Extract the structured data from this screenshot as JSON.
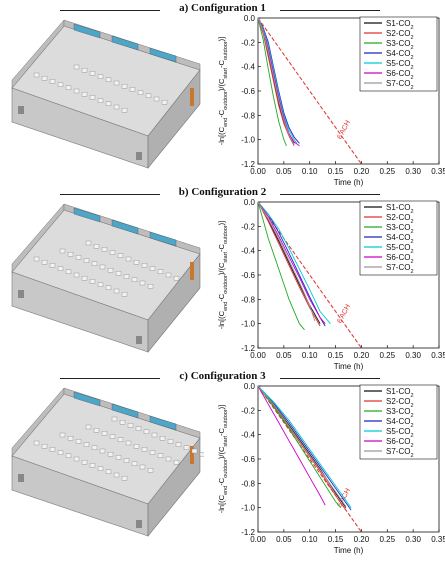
{
  "chart_data": [
    {
      "type": "line",
      "title": "a) Configuration 1",
      "ylabel": "-ln[(C_end - C_outdoor)/(C_start - C_outdoor)]",
      "xlabel": "Time (h)",
      "xlim": [
        0,
        0.35
      ],
      "ylim": [
        -1.2,
        0.0
      ],
      "xticks": [
        "0.00",
        "0.05",
        "0.10",
        "0.15",
        "0.20",
        "0.25",
        "0.30",
        "0.35"
      ],
      "yticks": [
        "0.0",
        "-0.2",
        "-0.4",
        "-0.6",
        "-0.8",
        "-1.0",
        "-1.2"
      ],
      "grid": false,
      "legend_position": "top-right",
      "reference_line": {
        "label": "6 ACH",
        "x": [
          0.0,
          0.2
        ],
        "y": [
          0.0,
          -1.2
        ],
        "color": "#e03030"
      },
      "series": [
        {
          "name": "S1-CO2",
          "color": "#111111",
          "x": [
            0,
            0.01,
            0.02,
            0.03,
            0.04,
            0.05,
            0.06,
            0.07
          ],
          "y": [
            0,
            -0.12,
            -0.3,
            -0.5,
            -0.7,
            -0.85,
            -0.95,
            -1.03
          ]
        },
        {
          "name": "S2-CO2",
          "color": "#e03030",
          "x": [
            0,
            0.01,
            0.02,
            0.03,
            0.04,
            0.05,
            0.06,
            0.07
          ],
          "y": [
            0,
            -0.13,
            -0.32,
            -0.52,
            -0.72,
            -0.87,
            -0.97,
            -1.05
          ]
        },
        {
          "name": "S3-CO2",
          "color": "#22aa22",
          "x": [
            0,
            0.01,
            0.02,
            0.03,
            0.04,
            0.05,
            0.055
          ],
          "y": [
            0,
            -0.18,
            -0.42,
            -0.65,
            -0.85,
            -1.0,
            -1.05
          ]
        },
        {
          "name": "S4-CO2",
          "color": "#2222cc",
          "x": [
            0,
            0.01,
            0.02,
            0.03,
            0.04,
            0.05,
            0.06,
            0.07,
            0.08
          ],
          "y": [
            0,
            -0.08,
            -0.2,
            -0.4,
            -0.6,
            -0.78,
            -0.9,
            -0.98,
            -1.03
          ]
        },
        {
          "name": "S5-CO2",
          "color": "#00cccc",
          "x": [
            0,
            0.01,
            0.02,
            0.03,
            0.04,
            0.05,
            0.06,
            0.07,
            0.075
          ],
          "y": [
            0,
            -0.09,
            -0.22,
            -0.42,
            -0.62,
            -0.8,
            -0.92,
            -1.0,
            -1.03
          ]
        },
        {
          "name": "S6-CO2",
          "color": "#cc00cc",
          "x": [
            0,
            0.01,
            0.02,
            0.03,
            0.04,
            0.05,
            0.06,
            0.07,
            0.08
          ],
          "y": [
            0,
            -0.1,
            -0.25,
            -0.45,
            -0.65,
            -0.82,
            -0.95,
            -1.02,
            -1.05
          ]
        },
        {
          "name": "S7-CO2",
          "color": "#999999",
          "x": [
            0,
            0.01,
            0.02,
            0.03,
            0.04,
            0.05,
            0.06,
            0.07
          ],
          "y": [
            0,
            -0.11,
            -0.28,
            -0.48,
            -0.68,
            -0.84,
            -0.96,
            -1.04
          ]
        }
      ]
    },
    {
      "type": "line",
      "title": "b) Configuration 2",
      "ylabel": "-ln[(C_end - C_outdoor)/(C_start - C_outdoor)]",
      "xlabel": "Time (h)",
      "xlim": [
        0,
        0.35
      ],
      "ylim": [
        -1.2,
        0.0
      ],
      "xticks": [
        "0.00",
        "0.05",
        "0.10",
        "0.15",
        "0.20",
        "0.25",
        "0.30",
        "0.35"
      ],
      "yticks": [
        "0.0",
        "-0.2",
        "-0.4",
        "-0.6",
        "-0.8",
        "-1.0",
        "-1.2"
      ],
      "grid": false,
      "legend_position": "top-right",
      "reference_line": {
        "label": "6 ACH",
        "x": [
          0.0,
          0.2
        ],
        "y": [
          0.0,
          -1.2
        ],
        "color": "#e03030"
      },
      "series": [
        {
          "name": "S1-CO2",
          "color": "#111111",
          "x": [
            0,
            0.02,
            0.04,
            0.06,
            0.08,
            0.1,
            0.12
          ],
          "y": [
            0,
            -0.15,
            -0.32,
            -0.5,
            -0.68,
            -0.85,
            -1.0
          ]
        },
        {
          "name": "S2-CO2",
          "color": "#e03030",
          "x": [
            0,
            0.02,
            0.04,
            0.06,
            0.08,
            0.1,
            0.12
          ],
          "y": [
            0,
            -0.16,
            -0.34,
            -0.52,
            -0.7,
            -0.87,
            -1.02
          ]
        },
        {
          "name": "S3-CO2",
          "color": "#22aa22",
          "x": [
            0,
            0.01,
            0.02,
            0.04,
            0.06,
            0.08,
            0.09
          ],
          "y": [
            0,
            -0.15,
            -0.3,
            -0.55,
            -0.8,
            -1.0,
            -1.05
          ]
        },
        {
          "name": "S4-CO2",
          "color": "#2222cc",
          "x": [
            0,
            0.02,
            0.04,
            0.06,
            0.08,
            0.1,
            0.12,
            0.13
          ],
          "y": [
            0,
            -0.1,
            -0.25,
            -0.42,
            -0.6,
            -0.78,
            -0.95,
            -1.02
          ]
        },
        {
          "name": "S5-CO2",
          "color": "#00cccc",
          "x": [
            0,
            0.02,
            0.04,
            0.06,
            0.08,
            0.1,
            0.12,
            0.14
          ],
          "y": [
            0,
            -0.1,
            -0.22,
            -0.38,
            -0.55,
            -0.72,
            -0.9,
            -1.0
          ]
        },
        {
          "name": "S6-CO2",
          "color": "#cc00cc",
          "x": [
            0,
            0.02,
            0.04,
            0.06,
            0.08,
            0.1,
            0.12,
            0.13
          ],
          "y": [
            0,
            -0.12,
            -0.28,
            -0.45,
            -0.62,
            -0.8,
            -0.95,
            -1.0
          ]
        },
        {
          "name": "S7-CO2",
          "color": "#999999",
          "x": [
            0,
            0.02,
            0.04,
            0.06,
            0.08,
            0.1,
            0.11
          ],
          "y": [
            0,
            -0.14,
            -0.3,
            -0.48,
            -0.66,
            -0.85,
            -0.98
          ]
        }
      ]
    },
    {
      "type": "line",
      "title": "c) Configuration 3",
      "ylabel": "-ln[(C_end - C_outdoor)/(C_start - C_outdoor)]",
      "xlabel": "Time (h)",
      "xlim": [
        0,
        0.35
      ],
      "ylim": [
        -1.2,
        0.0
      ],
      "xticks": [
        "0.00",
        "0.05",
        "0.10",
        "0.15",
        "0.20",
        "0.25",
        "0.30",
        "0.35"
      ],
      "yticks": [
        "0.0",
        "-0.2",
        "-0.4",
        "-0.6",
        "-0.8",
        "-1.0",
        "-1.2"
      ],
      "grid": false,
      "legend_position": "top-right",
      "reference_line": {
        "label": "6 ACH",
        "x": [
          0.0,
          0.2
        ],
        "y": [
          0.0,
          -1.2
        ],
        "color": "#e03030"
      },
      "series": [
        {
          "name": "S1-CO2",
          "color": "#111111",
          "x": [
            0,
            0.03,
            0.06,
            0.09,
            0.12,
            0.15,
            0.17
          ],
          "y": [
            0,
            -0.15,
            -0.32,
            -0.5,
            -0.68,
            -0.88,
            -1.0
          ]
        },
        {
          "name": "S2-CO2",
          "color": "#e03030",
          "x": [
            0,
            0.03,
            0.06,
            0.09,
            0.12,
            0.15,
            0.17
          ],
          "y": [
            0,
            -0.16,
            -0.34,
            -0.52,
            -0.7,
            -0.9,
            -1.02
          ]
        },
        {
          "name": "S3-CO2",
          "color": "#22aa22",
          "x": [
            0,
            0.03,
            0.06,
            0.09,
            0.12,
            0.15,
            0.16
          ],
          "y": [
            0,
            -0.17,
            -0.35,
            -0.55,
            -0.75,
            -0.95,
            -1.0
          ]
        },
        {
          "name": "S4-CO2",
          "color": "#2222cc",
          "x": [
            0,
            0.03,
            0.06,
            0.09,
            0.12,
            0.15,
            0.18
          ],
          "y": [
            0,
            -0.14,
            -0.3,
            -0.48,
            -0.66,
            -0.84,
            -1.02
          ]
        },
        {
          "name": "S5-CO2",
          "color": "#00cccc",
          "x": [
            0,
            0.03,
            0.06,
            0.09,
            0.12,
            0.15,
            0.18
          ],
          "y": [
            0,
            -0.13,
            -0.28,
            -0.46,
            -0.64,
            -0.82,
            -1.0
          ]
        },
        {
          "name": "S6-CO2",
          "color": "#cc00cc",
          "x": [
            0,
            0.02,
            0.04,
            0.06,
            0.08,
            0.1,
            0.12,
            0.13
          ],
          "y": [
            0,
            -0.15,
            -0.3,
            -0.45,
            -0.6,
            -0.75,
            -0.9,
            -0.98
          ]
        },
        {
          "name": "S7-CO2",
          "color": "#999999",
          "x": [
            0,
            0.03,
            0.06,
            0.09,
            0.12,
            0.15,
            0.17
          ],
          "y": [
            0,
            -0.15,
            -0.33,
            -0.51,
            -0.69,
            -0.87,
            -0.99
          ]
        }
      ]
    }
  ],
  "legend_labels": [
    "S1-CO2",
    "S2-CO2",
    "S3-CO2",
    "S4-CO2",
    "S5-CO2",
    "S6-CO2",
    "S7-CO2"
  ],
  "axis": {
    "ylabel_prefix": "-ln[(C",
    "ylabel_end_sub": "end",
    "ylabel_mid": "-C",
    "ylabel_out_sub": "outdoor",
    "ylabel_mid2": ")/(C",
    "ylabel_start_sub": "start",
    "ylabel_suffix": ")]",
    "xlabel": "Time (h)"
  },
  "colors": {
    "wall": "#c8c8c8",
    "floor": "#dcdcdc",
    "chair": "#f2f2f2",
    "window": "#4da6c8",
    "door": "#c87830"
  }
}
